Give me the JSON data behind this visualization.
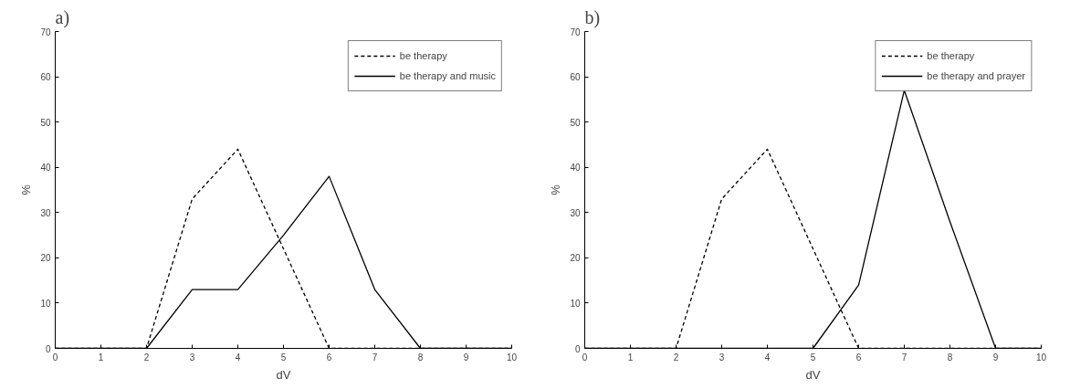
{
  "chart_data": [
    {
      "type": "line",
      "title": "a)",
      "xlabel": "dV",
      "ylabel": "%",
      "x": [
        0,
        1,
        2,
        3,
        4,
        5,
        6,
        7,
        8,
        9,
        10
      ],
      "series": [
        {
          "name": "be therapy",
          "color": "#000000",
          "line_style": "dashed",
          "values": [
            0,
            0,
            0,
            33,
            44,
            22,
            0,
            0,
            0,
            0,
            0
          ]
        },
        {
          "name": "be therapy and music",
          "color": "#000000",
          "line_style": "solid",
          "values": [
            0,
            0,
            0,
            13,
            13,
            25,
            38,
            13,
            0,
            0,
            0
          ]
        }
      ],
      "xlim": [
        0,
        10
      ],
      "ylim": [
        0,
        70
      ],
      "xticks": [
        0,
        1,
        2,
        3,
        4,
        5,
        6,
        7,
        8,
        9,
        10
      ],
      "yticks": [
        0,
        10,
        20,
        30,
        40,
        50,
        60,
        70
      ],
      "grid": false,
      "legend": "top right",
      "marker": "none"
    },
    {
      "type": "line",
      "title": "b)",
      "xlabel": "dV",
      "ylabel": "%",
      "x": [
        0,
        1,
        2,
        3,
        4,
        5,
        6,
        7,
        8,
        9,
        10
      ],
      "series": [
        {
          "name": "be therapy",
          "color": "#000000",
          "line_style": "dashed",
          "values": [
            0,
            0,
            0,
            33,
            44,
            22,
            0,
            0,
            0,
            0,
            0
          ]
        },
        {
          "name": "be therapy and prayer",
          "color": "#000000",
          "line_style": "solid",
          "values": [
            0,
            0,
            0,
            0,
            0,
            0,
            14,
            57,
            28,
            0,
            0
          ]
        }
      ],
      "xlim": [
        0,
        10
      ],
      "ylim": [
        0,
        70
      ],
      "xticks": [
        0,
        1,
        2,
        3,
        4,
        5,
        6,
        7,
        8,
        9,
        10
      ],
      "yticks": [
        0,
        10,
        20,
        30,
        40,
        50,
        60,
        70
      ],
      "grid": false,
      "legend": "top right",
      "marker": "none"
    }
  ]
}
